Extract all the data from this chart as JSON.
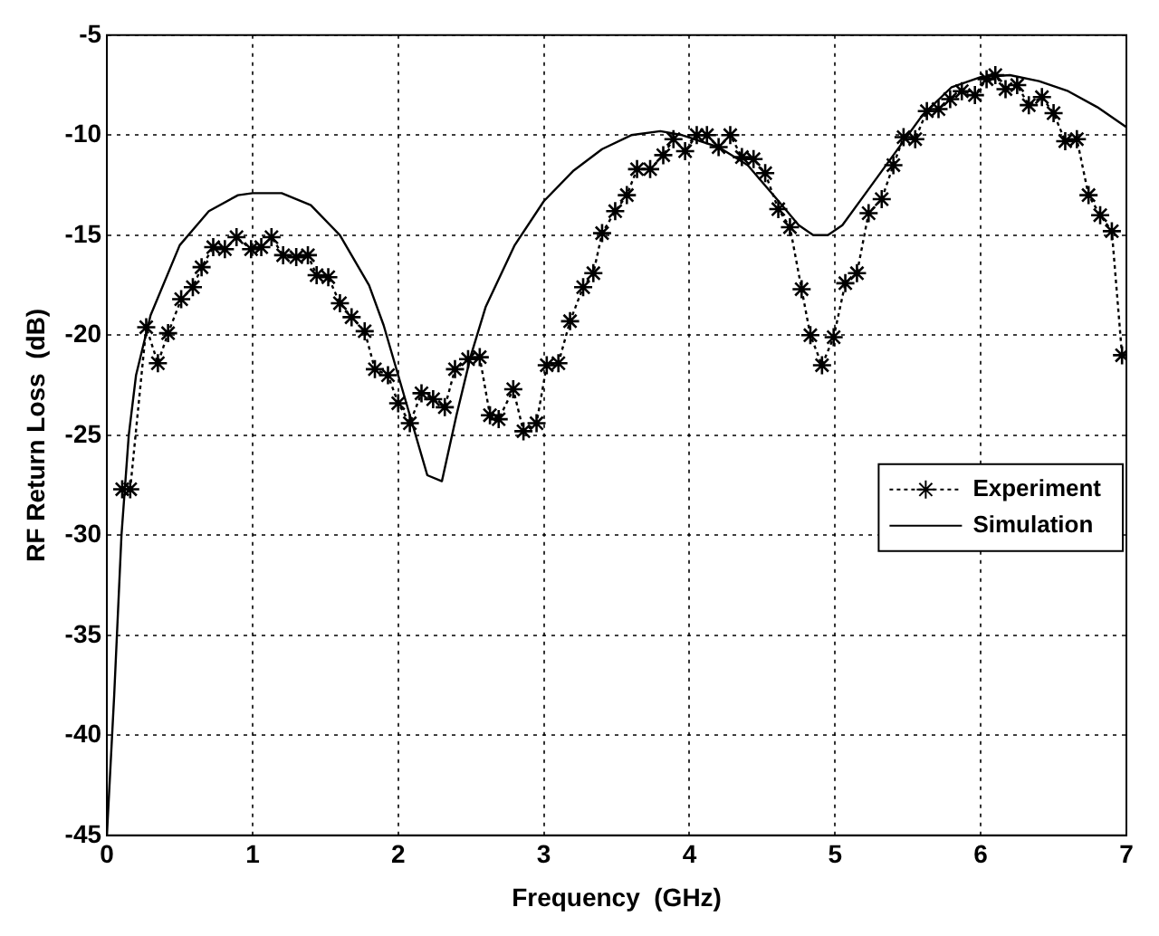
{
  "chart_data": {
    "type": "line",
    "xlabel": "Frequency  (GHz)",
    "ylabel": "RF Return Loss  (dB)",
    "xlim": [
      0,
      7
    ],
    "xticks": [
      0,
      1,
      2,
      3,
      4,
      5,
      6,
      7
    ],
    "ylim": [
      -45,
      -5
    ],
    "yticks": [
      -45,
      -40,
      -35,
      -30,
      -25,
      -20,
      -15,
      -10,
      -5
    ],
    "grid": true,
    "legend": "right",
    "series": [
      {
        "name": "Experiment",
        "color": "#000000",
        "marker": "cross",
        "line_style": "dotted",
        "x": [
          0.105,
          0.16,
          0.27,
          0.35,
          0.42,
          0.51,
          0.59,
          0.65,
          0.73,
          0.81,
          0.89,
          0.99,
          1.06,
          1.13,
          1.21,
          1.3,
          1.38,
          1.44,
          1.52,
          1.6,
          1.68,
          1.77,
          1.84,
          1.93,
          2.0,
          2.08,
          2.16,
          2.24,
          2.32,
          2.39,
          2.48,
          2.56,
          2.63,
          2.69,
          2.79,
          2.86,
          2.95,
          3.02,
          3.1,
          3.18,
          3.27,
          3.34,
          3.4,
          3.49,
          3.57,
          3.64,
          3.73,
          3.82,
          3.89,
          3.97,
          4.05,
          4.12,
          4.2,
          4.28,
          4.36,
          4.44,
          4.52,
          4.61,
          4.69,
          4.77,
          4.83,
          4.91,
          4.99,
          5.07,
          5.15,
          5.23,
          5.32,
          5.4,
          5.47,
          5.55,
          5.63,
          5.71,
          5.79,
          5.87,
          5.96,
          6.04,
          6.1,
          6.17,
          6.25,
          6.33,
          6.42,
          6.5,
          6.58,
          6.66,
          6.74,
          6.82,
          6.9,
          6.97
        ],
        "values": [
          -27.7,
          -27.7,
          -19.6,
          -21.4,
          -19.9,
          -18.2,
          -17.6,
          -16.6,
          -15.6,
          -15.7,
          -15.1,
          -15.7,
          -15.6,
          -15.1,
          -16.0,
          -16.1,
          -16.0,
          -17.0,
          -17.1,
          -18.4,
          -19.1,
          -19.8,
          -21.7,
          -22.0,
          -23.4,
          -24.4,
          -22.9,
          -23.2,
          -23.6,
          -21.7,
          -21.2,
          -21.1,
          -24.0,
          -24.2,
          -22.7,
          -24.8,
          -24.4,
          -21.5,
          -21.4,
          -19.3,
          -17.6,
          -16.9,
          -14.9,
          -13.8,
          -13.0,
          -11.7,
          -11.7,
          -11.0,
          -10.2,
          -10.8,
          -10.0,
          -10.0,
          -10.6,
          -10.0,
          -11.1,
          -11.2,
          -11.9,
          -13.7,
          -14.6,
          -17.7,
          -20.0,
          -21.5,
          -20.1,
          -17.4,
          -16.9,
          -13.9,
          -13.2,
          -11.5,
          -10.1,
          -10.2,
          -8.8,
          -8.7,
          -8.2,
          -7.8,
          -8.0,
          -7.2,
          -7.0,
          -7.7,
          -7.5,
          -8.5,
          -8.1,
          -8.9,
          -10.3,
          -10.2,
          -13.0,
          -14.0,
          -14.8,
          -21.0
        ]
      },
      {
        "name": "Simulation",
        "color": "#000000",
        "marker": "none",
        "line_style": "solid",
        "x": [
          0,
          0.05,
          0.1,
          0.15,
          0.2,
          0.3,
          0.5,
          0.7,
          0.9,
          1.0,
          1.2,
          1.4,
          1.6,
          1.8,
          1.9,
          2.0,
          2.1,
          2.2,
          2.3,
          2.4,
          2.5,
          2.6,
          2.8,
          3.0,
          3.2,
          3.4,
          3.6,
          3.8,
          3.95,
          4.2,
          4.4,
          4.6,
          4.75,
          4.85,
          4.95,
          5.05,
          5.2,
          5.4,
          5.6,
          5.8,
          6.0,
          6.2,
          6.4,
          6.6,
          6.8,
          7.0
        ],
        "values": [
          -45,
          -38,
          -30,
          -25,
          -22,
          -19,
          -15.5,
          -13.8,
          -13.0,
          -12.9,
          -12.9,
          -13.5,
          -15,
          -17.5,
          -19.5,
          -22,
          -24.5,
          -27,
          -27.3,
          -24,
          -21,
          -18.6,
          -15.5,
          -13.3,
          -11.8,
          -10.7,
          -10.0,
          -9.8,
          -10.0,
          -10.6,
          -11.5,
          -13.2,
          -14.5,
          -15.0,
          -15.0,
          -14.5,
          -13.0,
          -11.0,
          -9.0,
          -7.6,
          -7.1,
          -7.0,
          -7.3,
          -7.8,
          -8.6,
          -9.6
        ]
      }
    ]
  }
}
